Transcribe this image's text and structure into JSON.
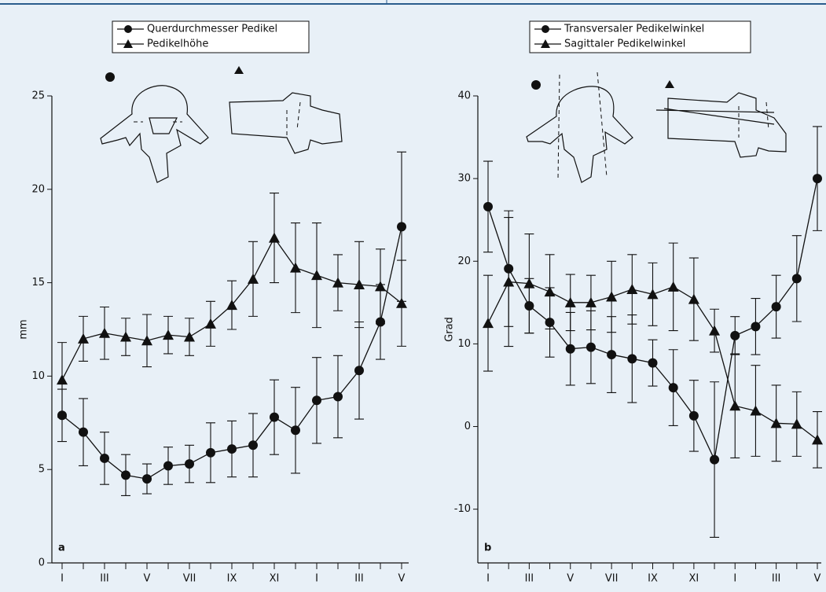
{
  "chart_data": [
    {
      "type": "line",
      "panel_label": "a",
      "ylabel": "mm",
      "categories": [
        "I",
        null,
        "III",
        null,
        "V",
        null,
        "VII",
        null,
        "IX",
        null,
        "XI",
        null,
        "I",
        null,
        "III",
        null,
        "V"
      ],
      "series": [
        {
          "name": "Querdurchmesser Pedikel",
          "color": "#111111",
          "marker": "circle",
          "values": [
            7.9,
            7.0,
            5.6,
            4.7,
            4.5,
            5.2,
            5.3,
            5.9,
            6.1,
            6.3,
            7.8,
            7.1,
            8.7,
            8.9,
            10.3,
            12.9,
            18.0
          ],
          "errors": [
            1.4,
            1.8,
            1.4,
            1.1,
            0.8,
            1.0,
            1.0,
            1.6,
            1.5,
            1.7,
            2.0,
            2.3,
            2.3,
            2.2,
            2.6,
            2.0,
            4.0
          ]
        },
        {
          "name": "Pedikelhöhe",
          "color": "#111111",
          "marker": "triangle",
          "values": [
            9.8,
            12.0,
            12.3,
            12.1,
            11.9,
            12.2,
            12.1,
            12.8,
            13.8,
            15.2,
            17.4,
            15.8,
            15.4,
            15.0,
            14.9,
            14.8,
            13.9
          ],
          "errors": [
            2.0,
            1.2,
            1.4,
            1.0,
            1.4,
            1.0,
            1.0,
            1.2,
            1.3,
            2.0,
            2.4,
            2.4,
            2.8,
            1.5,
            2.3,
            2.0,
            2.3
          ]
        }
      ],
      "ylim": [
        0,
        25
      ],
      "yticks": [
        0,
        5,
        10,
        15,
        20,
        25
      ],
      "grid": false
    },
    {
      "type": "line",
      "panel_label": "b",
      "ylabel": "Grad",
      "categories": [
        "I",
        null,
        "III",
        null,
        "V",
        null,
        "VII",
        null,
        "IX",
        null,
        "XI",
        null,
        "I",
        null,
        "III",
        null,
        "V"
      ],
      "series": [
        {
          "name": "Transversaler Pedikelwinkel",
          "color": "#111111",
          "marker": "circle",
          "values": [
            26.6,
            19.1,
            14.6,
            12.6,
            9.4,
            9.6,
            8.7,
            8.2,
            7.7,
            4.7,
            1.3,
            -4.0,
            11.0,
            12.1,
            14.5,
            17.9,
            30.0
          ],
          "errors": [
            5.5,
            7.0,
            3.3,
            4.2,
            4.4,
            4.4,
            4.6,
            5.3,
            2.8,
            4.6,
            4.3,
            9.4,
            2.3,
            3.4,
            3.8,
            5.2,
            6.3
          ]
        },
        {
          "name": "Sagittaler Pedikelwinkel",
          "color": "#111111",
          "marker": "triangle",
          "values": [
            12.5,
            17.5,
            17.3,
            16.3,
            15.0,
            15.0,
            15.7,
            16.6,
            16.0,
            16.9,
            15.4,
            11.6,
            2.5,
            1.9,
            0.4,
            0.3,
            -1.6
          ],
          "errors": [
            5.8,
            7.8,
            6.0,
            4.5,
            3.4,
            3.3,
            4.3,
            4.2,
            3.8,
            5.3,
            5.0,
            2.6,
            6.3,
            5.5,
            4.6,
            3.9,
            3.4
          ]
        }
      ],
      "ylim": [
        -16.5,
        40
      ],
      "yticks": [
        -10,
        0,
        10,
        20,
        30,
        40
      ],
      "grid": false
    }
  ]
}
